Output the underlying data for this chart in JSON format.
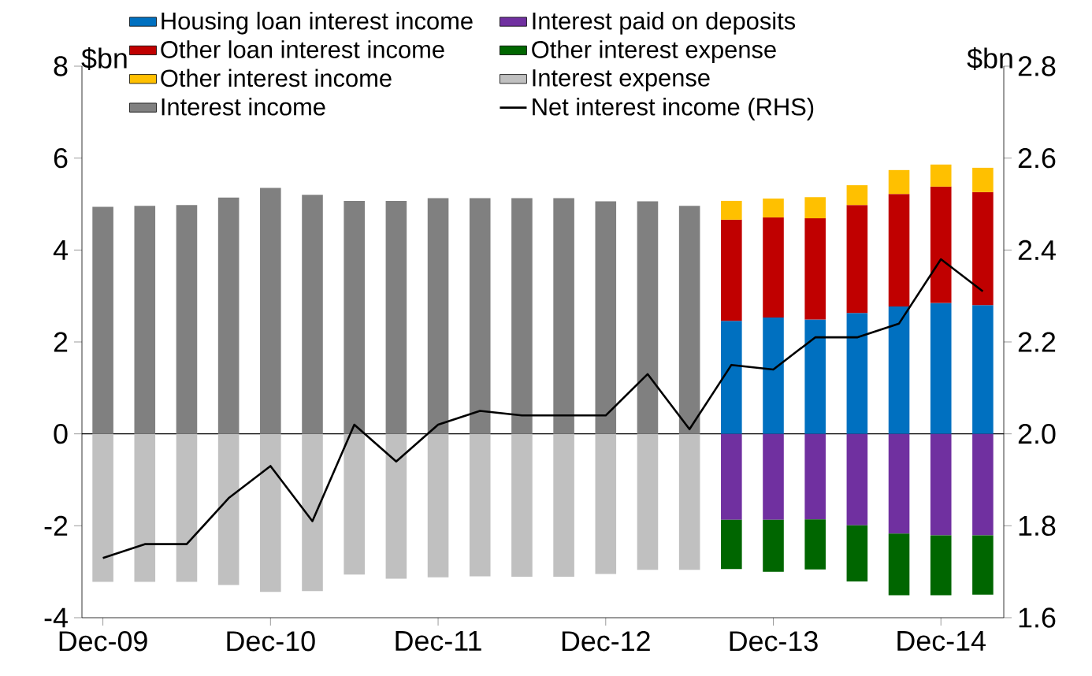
{
  "chart_data": {
    "type": "bar",
    "stacked": true,
    "legend": "top",
    "ylabel": "$bn",
    "y2label": "$bn",
    "categories": [
      "Dec-09",
      null,
      null,
      null,
      "Dec-10",
      null,
      null,
      null,
      "Dec-11",
      null,
      null,
      null,
      "Dec-12",
      null,
      null,
      null,
      "Dec-13",
      null,
      null,
      null,
      "Dec-14",
      null
    ],
    "ylim": [
      -4,
      8
    ],
    "yticks": [
      -4,
      -2,
      0,
      2,
      4,
      6,
      8
    ],
    "y2lim": [
      1.6,
      2.8
    ],
    "y2ticks": [
      1.6,
      1.8,
      {
        "value": 2.0,
        "label": "2.0"
      },
      2.2,
      2.4,
      2.6,
      2.8
    ],
    "series": [
      {
        "name": "Housing loan interest income",
        "color": "#0070c0",
        "values": [
          null,
          null,
          null,
          null,
          null,
          null,
          null,
          null,
          null,
          null,
          null,
          null,
          null,
          null,
          null,
          2.46,
          2.53,
          2.49,
          2.63,
          2.77,
          2.85,
          2.8
        ]
      },
      {
        "name": "Interest paid on deposits",
        "color": "#7030a0",
        "values": [
          null,
          null,
          null,
          null,
          null,
          null,
          null,
          null,
          null,
          null,
          null,
          null,
          null,
          null,
          null,
          -1.87,
          -1.87,
          -1.86,
          -1.99,
          -2.17,
          -2.21,
          -2.21
        ]
      },
      {
        "name": "Other loan interest income",
        "color": "#c00000",
        "values": [
          null,
          null,
          null,
          null,
          null,
          null,
          null,
          null,
          null,
          null,
          null,
          null,
          null,
          null,
          null,
          2.2,
          2.18,
          2.2,
          2.35,
          2.45,
          2.53,
          2.46
        ]
      },
      {
        "name": "Other interest expense",
        "color": "#006600",
        "values": [
          null,
          null,
          null,
          null,
          null,
          null,
          null,
          null,
          null,
          null,
          null,
          null,
          null,
          null,
          null,
          -1.07,
          -1.13,
          -1.09,
          -1.22,
          -1.34,
          -1.3,
          -1.29
        ]
      },
      {
        "name": "Other interest income",
        "color": "#ffc000",
        "values": [
          null,
          null,
          null,
          null,
          null,
          null,
          null,
          null,
          null,
          null,
          null,
          null,
          null,
          null,
          null,
          0.41,
          0.41,
          0.46,
          0.43,
          0.52,
          0.48,
          0.53
        ]
      },
      {
        "name": "Interest expense",
        "color": "#c0c0c0",
        "values": [
          -3.22,
          -3.22,
          -3.22,
          -3.29,
          -3.44,
          -3.42,
          -3.06,
          -3.15,
          -3.12,
          -3.1,
          -3.11,
          -3.11,
          -3.05,
          -2.96,
          -2.96,
          null,
          null,
          null,
          null,
          null,
          null,
          null
        ]
      },
      {
        "name": "Interest income",
        "color": "#808080",
        "values": [
          4.94,
          4.96,
          4.98,
          5.14,
          5.35,
          5.2,
          5.07,
          5.07,
          5.13,
          5.13,
          5.13,
          5.13,
          5.06,
          5.06,
          4.96,
          null,
          null,
          null,
          null,
          null,
          null,
          null
        ]
      },
      {
        "name": "Net interest income (RHS)",
        "color": "#000000",
        "type": "line",
        "axis": "y2",
        "values": [
          1.73,
          1.76,
          1.76,
          1.86,
          1.93,
          1.81,
          2.02,
          1.94,
          2.02,
          2.05,
          2.04,
          2.04,
          2.04,
          2.13,
          2.01,
          2.15,
          2.14,
          2.21,
          2.21,
          2.24,
          2.38,
          2.31
        ]
      }
    ]
  }
}
